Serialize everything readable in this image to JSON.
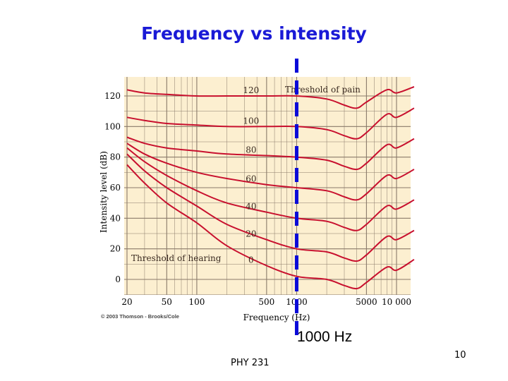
{
  "slide": {
    "title": "Frequency vs intensity",
    "footer_left": "PHY 231",
    "footer_right": "10",
    "annotation": "1000 Hz"
  },
  "colors": {
    "plot_bg": "#fcefd0",
    "curve": "#c8102e",
    "grid": "#8a7a6a",
    "marker": "#0a0ad8",
    "title": "#1a1ad6"
  },
  "chart_data": {
    "type": "line",
    "title": "",
    "xlabel": "Frequency (Hz)",
    "ylabel": "Intensity level (dB)",
    "x_scale": "log",
    "xlim": [
      20,
      16000
    ],
    "ylim": [
      -10,
      125
    ],
    "x_ticks": [
      20,
      50,
      100,
      500,
      1000,
      5000,
      10000
    ],
    "x_tick_labels": [
      "20",
      "50",
      "100",
      "500",
      "1000",
      "5000",
      "10 000"
    ],
    "y_ticks": [
      0,
      20,
      40,
      60,
      80,
      100,
      120
    ],
    "y_tick_labels": [
      "0",
      "20",
      "40",
      "60",
      "80",
      "100",
      "120"
    ],
    "credit": "© 2003 Thomson - Brooks/Cole",
    "threshold_of_pain_label": "Threshold of pain",
    "threshold_of_hearing_label": "Threshold of hearing",
    "reference_line_x": 1000,
    "series": [
      {
        "name": "0",
        "x": [
          20,
          30,
          50,
          100,
          200,
          500,
          1000,
          2000,
          3000,
          4000,
          5000,
          8000,
          10000,
          15000
        ],
        "y": [
          75,
          63,
          50,
          37,
          22,
          9,
          2,
          0,
          -4,
          -6,
          -2,
          8,
          6,
          13
        ]
      },
      {
        "name": "20",
        "x": [
          20,
          30,
          50,
          100,
          200,
          500,
          1000,
          2000,
          3000,
          4000,
          5000,
          8000,
          10000,
          15000
        ],
        "y": [
          82,
          71,
          60,
          48,
          36,
          26,
          20,
          18,
          14,
          12,
          16,
          28,
          26,
          32
        ]
      },
      {
        "name": "40",
        "x": [
          20,
          30,
          50,
          100,
          200,
          500,
          1000,
          2000,
          3000,
          4000,
          5000,
          8000,
          10000,
          15000
        ],
        "y": [
          86,
          77,
          68,
          58,
          50,
          44,
          40,
          38,
          34,
          32,
          36,
          48,
          46,
          52
        ]
      },
      {
        "name": "60",
        "x": [
          20,
          30,
          50,
          100,
          200,
          500,
          1000,
          2000,
          3000,
          4000,
          5000,
          8000,
          10000,
          15000
        ],
        "y": [
          89,
          82,
          76,
          70,
          66,
          62,
          60,
          58,
          54,
          52,
          56,
          68,
          66,
          72
        ]
      },
      {
        "name": "80",
        "x": [
          20,
          30,
          50,
          100,
          200,
          500,
          1000,
          2000,
          3000,
          4000,
          5000,
          8000,
          10000,
          15000
        ],
        "y": [
          93,
          89,
          86,
          84,
          82,
          81,
          80,
          78,
          74,
          72,
          76,
          88,
          86,
          92
        ]
      },
      {
        "name": "100",
        "x": [
          20,
          30,
          50,
          100,
          200,
          500,
          1000,
          2000,
          3000,
          4000,
          5000,
          8000,
          10000,
          15000
        ],
        "y": [
          106,
          104,
          102,
          101,
          100,
          100,
          100,
          98,
          94,
          92,
          96,
          108,
          106,
          112
        ]
      },
      {
        "name": "120",
        "x": [
          20,
          30,
          50,
          100,
          200,
          500,
          1000,
          2000,
          3000,
          4000,
          5000,
          8000,
          10000,
          15000
        ],
        "y": [
          124,
          122,
          121,
          120,
          120,
          120,
          120,
          118,
          114,
          112,
          116,
          124,
          122,
          126
        ]
      }
    ]
  }
}
